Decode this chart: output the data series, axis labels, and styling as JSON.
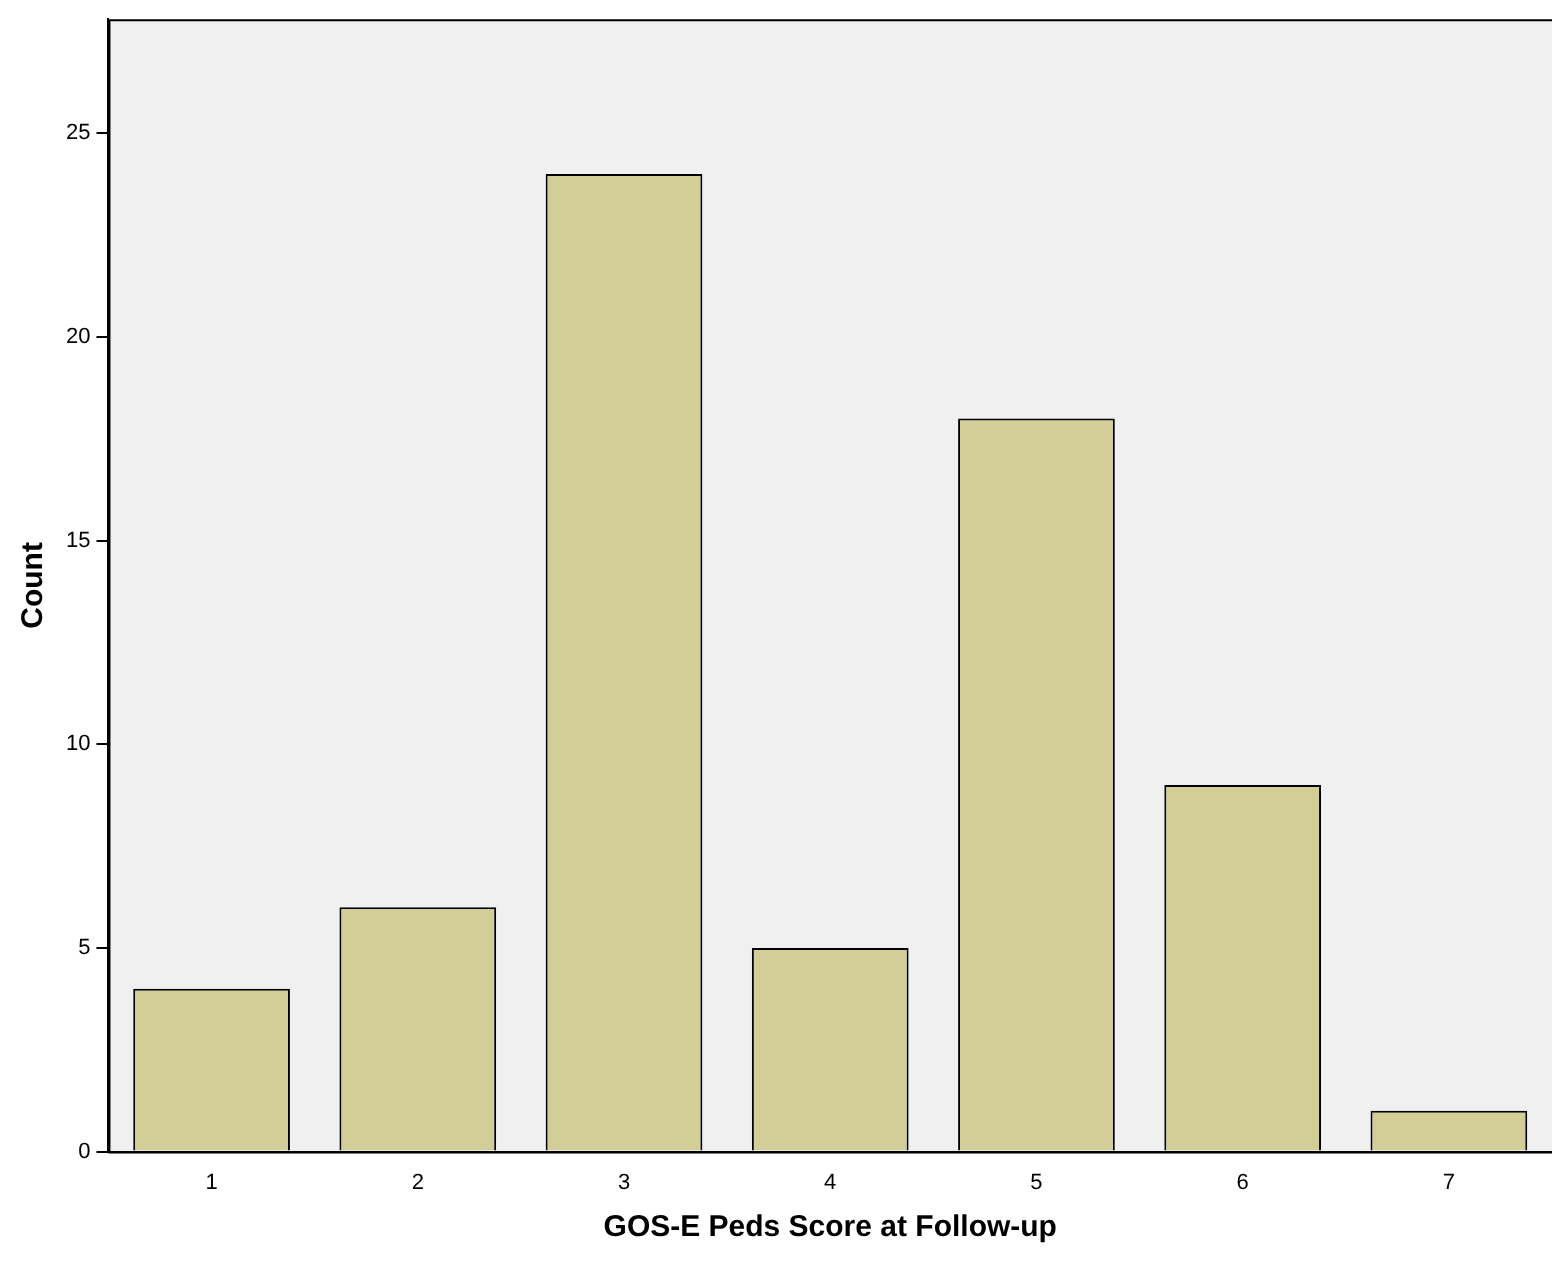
{
  "chart_data": {
    "type": "bar",
    "xlabel": "GOS-E Peds Score at Follow-up",
    "ylabel": "Count",
    "categories": [
      "1",
      "2",
      "3",
      "4",
      "5",
      "6",
      "7"
    ],
    "values": [
      4,
      6,
      24,
      5,
      18,
      9,
      1
    ],
    "color": "#d3ce97",
    "ylim": [
      0,
      27.8
    ],
    "yticks": [
      0,
      5,
      10,
      15,
      20,
      25
    ],
    "grid": false,
    "legend": false
  }
}
